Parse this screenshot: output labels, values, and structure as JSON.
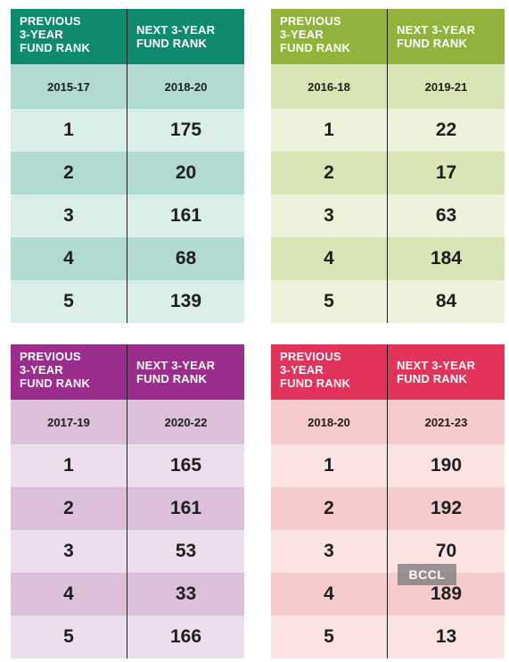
{
  "colors": {
    "green_header": "#0e8a6f",
    "green_years": "#b0dad2",
    "green_row_dark": "#b0dad2",
    "green_row_light": "#d9eee9",
    "olive_header": "#8fb33b",
    "olive_years": "#d7e6b4",
    "olive_row_dark": "#d7e6b4",
    "olive_row_light": "#ecf3da",
    "purple_header": "#9b2d8c",
    "purple_years": "#dcc0da",
    "purple_row_dark": "#dcc0da",
    "purple_row_light": "#eddeeb",
    "pink_header": "#e2345a",
    "pink_years": "#f6cbcb",
    "pink_row_dark": "#f6cbcb",
    "pink_row_light": "#fae3e2"
  },
  "panels": [
    {
      "header_left": "PREVIOUS\n3-YEAR\nFUND RANK",
      "header_right": "NEXT 3-YEAR\nFUND RANK",
      "years_left": "2015-17",
      "years_right": "2018-20",
      "rows": [
        {
          "prev": "1",
          "next": "175"
        },
        {
          "prev": "2",
          "next": "20"
        },
        {
          "prev": "3",
          "next": "161"
        },
        {
          "prev": "4",
          "next": "68"
        },
        {
          "prev": "5",
          "next": "139"
        }
      ]
    },
    {
      "header_left": "PREVIOUS\n3-YEAR\nFUND RANK",
      "header_right": "NEXT 3-YEAR\nFUND RANK",
      "years_left": "2016-18",
      "years_right": "2019-21",
      "rows": [
        {
          "prev": "1",
          "next": "22"
        },
        {
          "prev": "2",
          "next": "17"
        },
        {
          "prev": "3",
          "next": "63"
        },
        {
          "prev": "4",
          "next": "184"
        },
        {
          "prev": "5",
          "next": "84"
        }
      ]
    },
    {
      "header_left": "PREVIOUS\n3-YEAR\nFUND RANK",
      "header_right": "NEXT 3-YEAR\nFUND RANK",
      "years_left": "2017-19",
      "years_right": "2020-22",
      "rows": [
        {
          "prev": "1",
          "next": "165"
        },
        {
          "prev": "2",
          "next": "161"
        },
        {
          "prev": "3",
          "next": "53"
        },
        {
          "prev": "4",
          "next": "33"
        },
        {
          "prev": "5",
          "next": "166"
        }
      ]
    },
    {
      "header_left": "PREVIOUS\n3-YEAR\nFUND RANK",
      "header_right": "NEXT 3-YEAR\nFUND RANK",
      "years_left": "2018-20",
      "years_right": "2021-23",
      "rows": [
        {
          "prev": "1",
          "next": "190"
        },
        {
          "prev": "2",
          "next": "192"
        },
        {
          "prev": "3",
          "next": "70"
        },
        {
          "prev": "4",
          "next": "189"
        },
        {
          "prev": "5",
          "next": "13"
        }
      ]
    }
  ],
  "watermark": "BCCL"
}
